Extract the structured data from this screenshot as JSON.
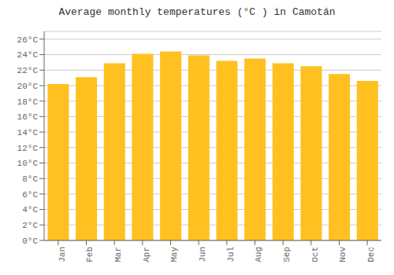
{
  "chart_data": {
    "type": "bar",
    "title": "Average monthly temperatures (°C ) in Camotán",
    "categories": [
      "Jan",
      "Feb",
      "Mar",
      "Apr",
      "May",
      "Jun",
      "Jul",
      "Aug",
      "Sep",
      "Oct",
      "Nov",
      "Dec"
    ],
    "values": [
      20.2,
      21.1,
      22.9,
      24.1,
      24.4,
      23.9,
      23.2,
      23.5,
      22.9,
      22.5,
      21.5,
      20.6
    ],
    "color": "#FFC020",
    "ylim": [
      0,
      27
    ],
    "yticks": [
      {
        "value": 0,
        "label": "0°C"
      },
      {
        "value": 2,
        "label": "2°C"
      },
      {
        "value": 4,
        "label": "4°C"
      },
      {
        "value": 6,
        "label": "6°C"
      },
      {
        "value": 8,
        "label": "8°C"
      },
      {
        "value": 10,
        "label": "10°C"
      },
      {
        "value": 12,
        "label": "12°C"
      },
      {
        "value": 14,
        "label": "14°C"
      },
      {
        "value": 16,
        "label": "16°C"
      },
      {
        "value": 18,
        "label": "18°C"
      },
      {
        "value": 20,
        "label": "20°C"
      },
      {
        "value": 22,
        "label": "22°C"
      },
      {
        "value": 24,
        "label": "24°C"
      },
      {
        "value": 26,
        "label": "26°C"
      }
    ],
    "grid": true
  }
}
